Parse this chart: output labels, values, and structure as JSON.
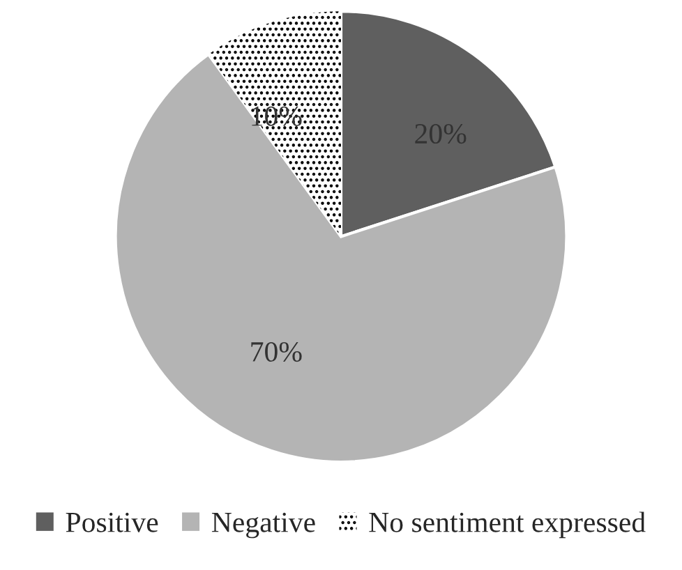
{
  "chart_data": {
    "type": "pie",
    "categories": [
      "Positive",
      "Negative",
      "No sentiment expressed"
    ],
    "values": [
      20,
      70,
      10
    ],
    "colors": [
      "#5f5f5f",
      "#b4b4b4",
      "#ffffff"
    ],
    "value_labels": [
      "20%",
      "70%",
      "10%"
    ],
    "legend": "bottom"
  }
}
